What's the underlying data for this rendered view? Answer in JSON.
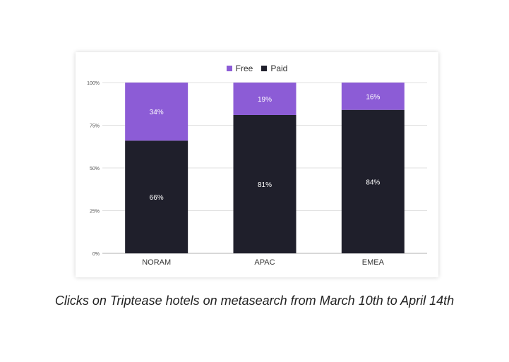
{
  "caption": "Clicks on Triptease hotels on metasearch from March 10th to April 14th",
  "colors": {
    "free": "#8c5cd6",
    "paid": "#1f1f2b",
    "grid": "#e0e0e0",
    "axis": "#b0b0b0"
  },
  "chart_data": {
    "type": "bar",
    "stacked": true,
    "categories": [
      "NORAM",
      "APAC",
      "EMEA"
    ],
    "series": [
      {
        "name": "Free",
        "values": [
          34,
          19,
          16
        ],
        "labels": [
          "34%",
          "19%",
          "16%"
        ]
      },
      {
        "name": "Paid",
        "values": [
          66,
          81,
          84
        ],
        "labels": [
          "66%",
          "81%",
          "84%"
        ]
      }
    ],
    "yticks": [
      "0%",
      "25%",
      "50%",
      "75%",
      "100%"
    ],
    "ylim": [
      0,
      100
    ],
    "legend_position": "top-center",
    "grid": true
  }
}
